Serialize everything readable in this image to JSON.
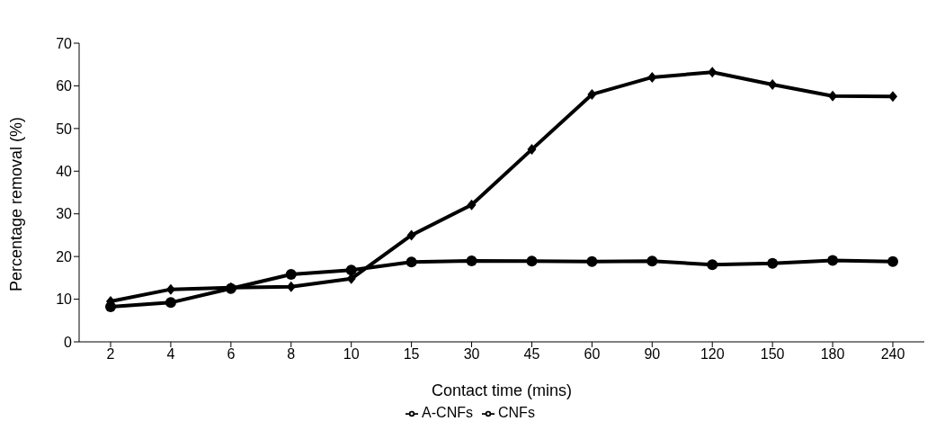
{
  "chart_data": {
    "type": "line",
    "xlabel": "Contact time (mins)",
    "ylabel": "Percentage removal (%)",
    "categories": [
      "2",
      "4",
      "6",
      "8",
      "10",
      "15",
      "30",
      "45",
      "60",
      "90",
      "120",
      "150",
      "180",
      "240"
    ],
    "ylim": [
      0,
      70
    ],
    "yticks": [
      0,
      10,
      20,
      30,
      40,
      50,
      60,
      70
    ],
    "grid": false,
    "legend": "bottom",
    "series": [
      {
        "name": "A-CNFs",
        "color": "#000000",
        "marker": "diamond",
        "values": [
          9.5,
          12.3,
          12.7,
          12.9,
          14.8,
          25,
          32.1,
          45.1,
          58,
          62,
          63.2,
          60.3,
          57.6,
          57.5
        ]
      },
      {
        "name": "CNFs",
        "color": "#000000",
        "marker": "circle",
        "values": [
          8.2,
          9.2,
          12.5,
          15.8,
          16.8,
          18.7,
          19,
          18.9,
          18.8,
          18.9,
          18.1,
          18.4,
          19.1,
          18.8
        ]
      }
    ]
  }
}
